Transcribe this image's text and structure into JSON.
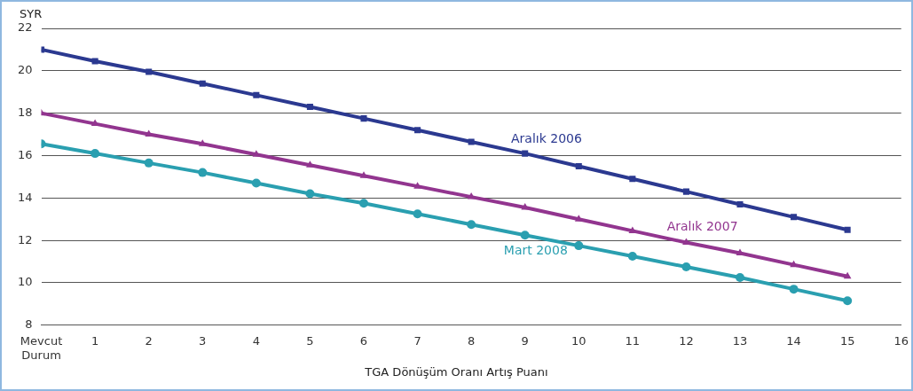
{
  "chart_data": {
    "type": "line",
    "ylabel": "SYR",
    "xlabel": "TGA Dönüşüm Oranı Artış Puanı",
    "x": [
      0,
      1,
      2,
      3,
      4,
      5,
      6,
      7,
      8,
      9,
      10,
      11,
      12,
      13,
      14,
      15
    ],
    "series": [
      {
        "name": "Aralık 2006",
        "color": "#2b3990",
        "marker": "square",
        "values": [
          21.0,
          20.45,
          19.95,
          19.4,
          18.85,
          18.3,
          17.75,
          17.2,
          16.65,
          16.1,
          15.5,
          14.9,
          14.3,
          13.7,
          13.1,
          12.5
        ]
      },
      {
        "name": "Aralık 2007",
        "color": "#92358f",
        "marker": "triangle",
        "values": [
          18.0,
          17.5,
          17.0,
          16.55,
          16.05,
          15.55,
          15.05,
          14.55,
          14.05,
          13.55,
          13.0,
          12.45,
          11.9,
          11.4,
          10.85,
          10.3
        ]
      },
      {
        "name": "Mart 2008",
        "color": "#2a9fb0",
        "marker": "circle",
        "values": [
          16.55,
          16.1,
          15.65,
          15.2,
          14.7,
          14.2,
          13.75,
          13.25,
          12.75,
          12.25,
          11.75,
          11.25,
          10.75,
          10.25,
          9.7,
          9.15
        ]
      }
    ],
    "xlim": [
      0,
      16
    ],
    "xticks": [
      {
        "value": 0,
        "label": "Mevcut Durum"
      },
      1,
      2,
      3,
      4,
      5,
      6,
      7,
      8,
      9,
      10,
      11,
      12,
      13,
      14,
      15,
      16
    ],
    "ylim": [
      8,
      22
    ],
    "yticks": [
      8,
      10,
      12,
      14,
      16,
      18,
      20,
      22
    ],
    "grid": "y",
    "legend": false
  }
}
